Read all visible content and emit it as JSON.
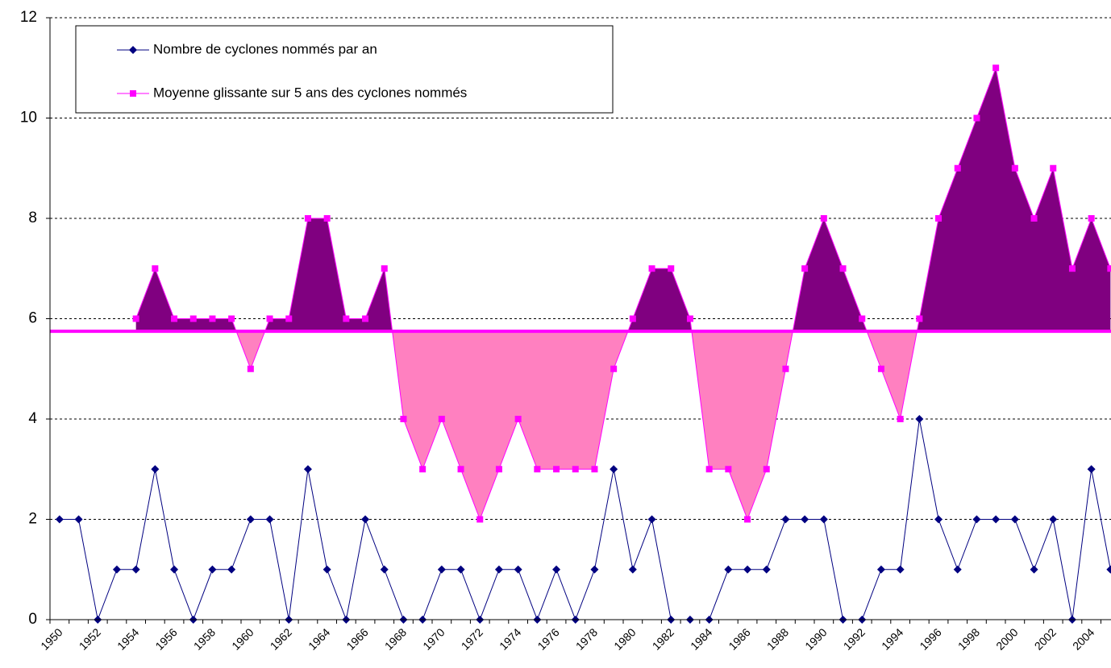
{
  "chart_data": {
    "type": "line",
    "categories": [
      "1950",
      null,
      "1952",
      null,
      "1954",
      null,
      "1956",
      null,
      "1958",
      null,
      "1960",
      null,
      "1962",
      null,
      "1964",
      null,
      "1966",
      null,
      "1968",
      null,
      "1970",
      null,
      "1972",
      null,
      "1974",
      null,
      "1976",
      null,
      "1978",
      null,
      "1980",
      null,
      "1982",
      null,
      "1984",
      null,
      "1986",
      null,
      "1988",
      null,
      "1990",
      null,
      "1992",
      null,
      "1994",
      null,
      "1996",
      null,
      "1998",
      null,
      "2000",
      null,
      "2002",
      null,
      "2004",
      null
    ],
    "series": [
      {
        "name": "Nombre de cyclones nommés par an",
        "color": "#000080",
        "marker": "diamond",
        "values": [
          2,
          2,
          0,
          1,
          1,
          3,
          1,
          0,
          1,
          1,
          2,
          2,
          0,
          3,
          1,
          0,
          2,
          1,
          0,
          0,
          1,
          1,
          0,
          1,
          1,
          0,
          1,
          0,
          1,
          3,
          1,
          2,
          0,
          0,
          0,
          1,
          1,
          1,
          2,
          2,
          2,
          0,
          0,
          1,
          1,
          4,
          2,
          1,
          2,
          2,
          2,
          1,
          2,
          0,
          3,
          1
        ]
      },
      {
        "name": "Moyenne glissante sur 5 ans des cyclones nommés",
        "color": "#ff00ff",
        "marker": "square",
        "values": [
          null,
          null,
          null,
          null,
          6,
          7,
          6,
          6,
          6,
          6,
          5,
          6,
          6,
          8,
          8,
          6,
          6,
          7,
          4,
          3,
          4,
          3,
          2,
          3,
          4,
          3,
          3,
          3,
          3,
          5,
          6,
          7,
          7,
          6,
          3,
          3,
          2,
          3,
          5,
          7,
          8,
          7,
          6,
          5,
          4,
          6,
          8,
          9,
          10,
          11,
          9,
          8,
          9,
          7,
          8,
          7
        ]
      }
    ],
    "reference_value": 5.75,
    "reference_color": "#ff00ff",
    "fill_above_color": "#800080",
    "fill_below_color": "#ff80c0",
    "ylim": [
      0,
      12
    ],
    "yticks": [
      0,
      2,
      4,
      6,
      8,
      10,
      12
    ],
    "grid": true
  }
}
